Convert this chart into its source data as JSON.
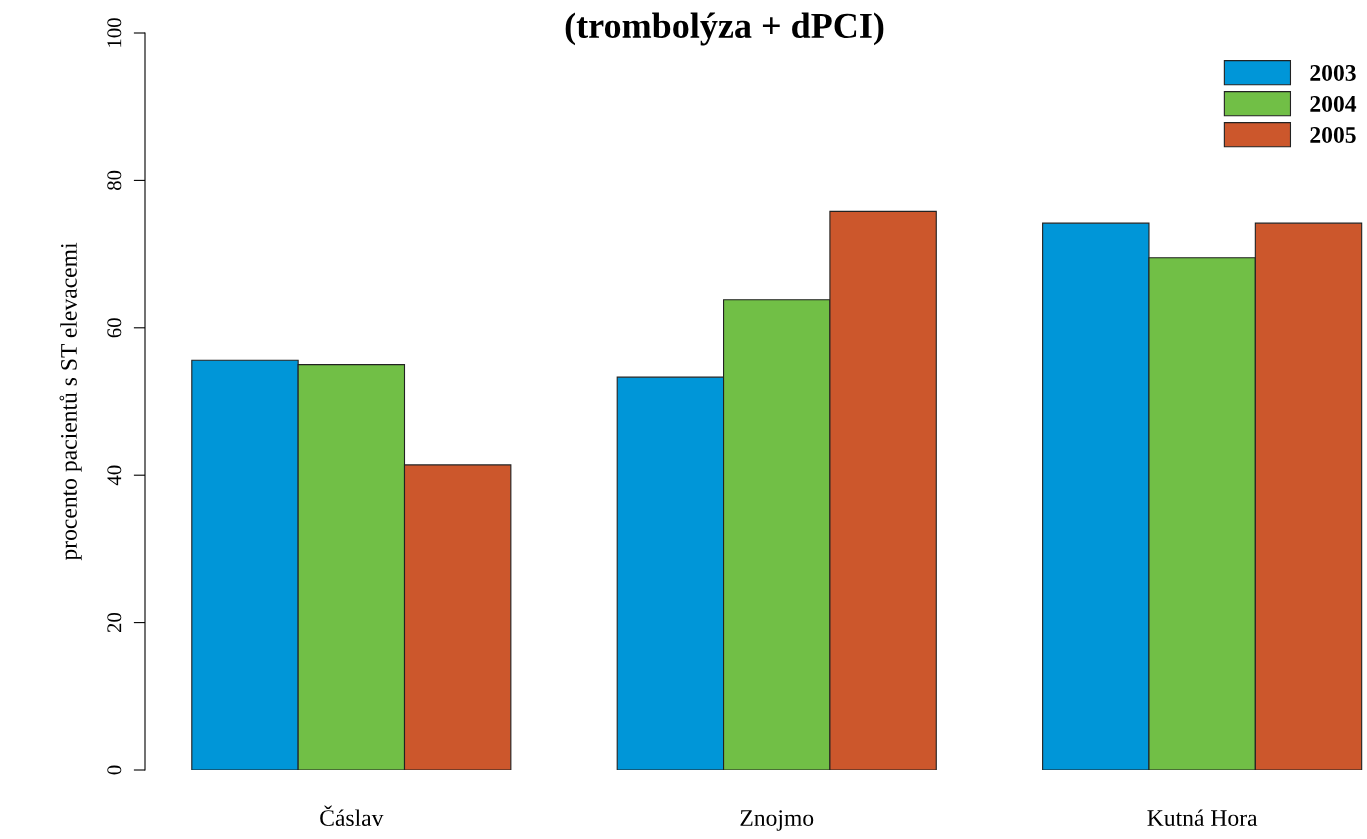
{
  "chart_data": {
    "type": "bar",
    "title": "(trombolýza + dPCI)",
    "ylabel": "procento pacientů s ST elevacemi",
    "categories": [
      "Čáslav",
      "Znojmo",
      "Kutná Hora"
    ],
    "series": [
      {
        "name": "2003",
        "color": "#0096d8",
        "values": [
          55.6,
          53.3,
          74.2
        ]
      },
      {
        "name": "2004",
        "color": "#71bf46",
        "values": [
          55.0,
          63.8,
          69.5
        ]
      },
      {
        "name": "2005",
        "color": "#cc572c",
        "values": [
          41.4,
          75.8,
          74.2
        ]
      }
    ],
    "ylim": [
      0,
      100
    ],
    "yticks": [
      0,
      20,
      40,
      60,
      80,
      100
    ],
    "grid": false,
    "legend": "top right"
  }
}
